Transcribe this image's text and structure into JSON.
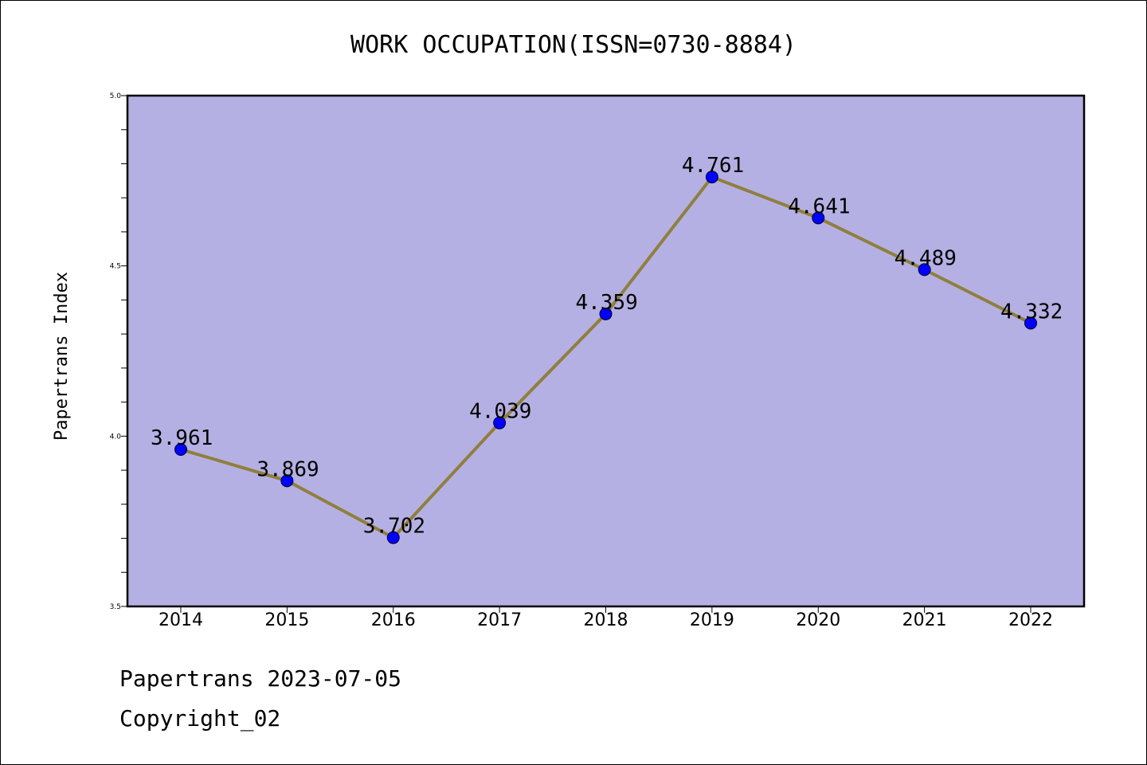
{
  "colors": {
    "plot_background": "#b5b0e3",
    "line": "#8f7f3e",
    "marker": "#0000ff",
    "frame": "#000000"
  },
  "footer": {
    "line1": "Papertrans 2023-07-05",
    "line2": "Copyright_02"
  },
  "chart_data": {
    "type": "line",
    "title": "WORK OCCUPATION(ISSN=0730-8884)",
    "xlabel": "",
    "ylabel": "Papertrans Index",
    "x": [
      "2014",
      "2015",
      "2016",
      "2017",
      "2018",
      "2019",
      "2020",
      "2021",
      "2022"
    ],
    "series": [
      {
        "values": [
          3.961,
          3.869,
          3.702,
          4.039,
          4.359,
          4.761,
          4.641,
          4.489,
          4.332
        ],
        "labels": [
          "3.961",
          "3.869",
          "3.702",
          "4.039",
          "4.359",
          "4.761",
          "4.641",
          "4.489",
          "4.332"
        ]
      }
    ],
    "ylim": [
      3.5,
      5.0
    ],
    "yticks": [
      "3.5",
      "4.0",
      "4.5",
      "5.0"
    ],
    "grid": false,
    "legend": "none"
  }
}
